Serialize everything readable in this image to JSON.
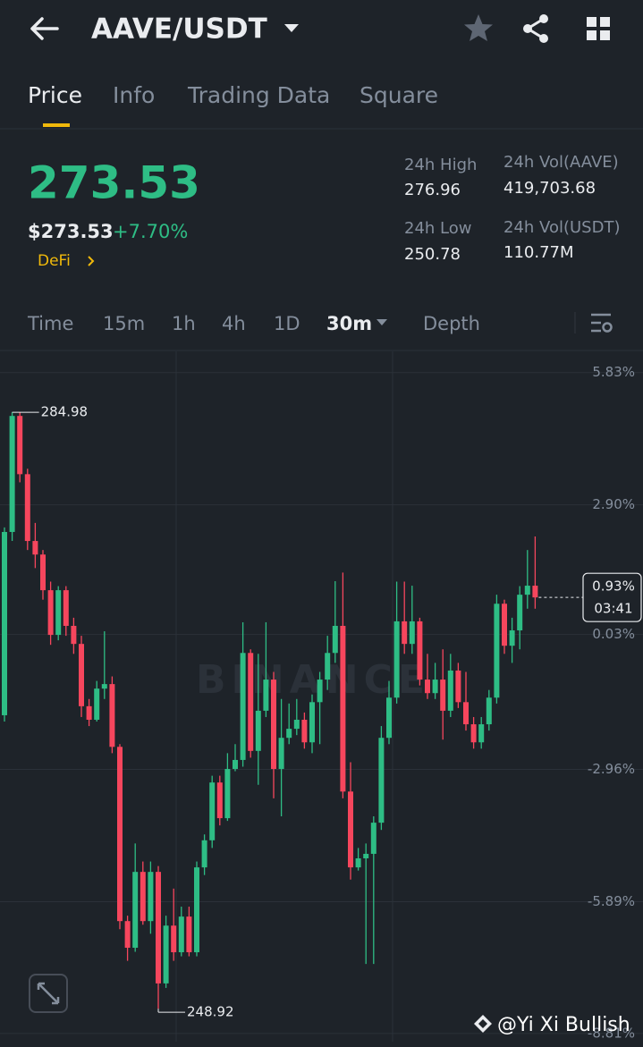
{
  "header": {
    "pair": "AAVE/USDT"
  },
  "tabs": [
    "Price",
    "Info",
    "Trading Data",
    "Square"
  ],
  "price": {
    "last": "273.53",
    "usd": "$273.53",
    "change": "+7.70%",
    "tag": "DeFi"
  },
  "stats": [
    {
      "label": "24h High",
      "value": "276.96"
    },
    {
      "label": "24h Vol(AAVE)",
      "value": "419,703.68"
    },
    {
      "label": "24h Low",
      "value": "250.78"
    },
    {
      "label": "24h Vol(USDT)",
      "value": "110.77M"
    }
  ],
  "intervals": [
    "Time",
    "15m",
    "1h",
    "4h",
    "1D",
    "30m",
    "Depth"
  ],
  "chart": {
    "type": "candlestick",
    "ylim": [
      -8.99,
      6.3
    ],
    "yticks": [
      {
        "value": 5.83,
        "label": "5.83%"
      },
      {
        "value": 2.9,
        "label": "2.90%"
      },
      {
        "value": 0.03,
        "label": "0.03%"
      },
      {
        "value": -2.96,
        "label": "-2.96%"
      },
      {
        "value": -5.89,
        "label": "-5.89%"
      },
      {
        "value": -8.81,
        "label": "-8.81%"
      }
    ],
    "up_color": "#2ebd85",
    "down_color": "#f6465d",
    "high_label": "284.98",
    "low_label": "248.92",
    "current": {
      "label": "0.93%",
      "countdown": "03:41"
    },
    "watermark": "BINANCE",
    "candles": [
      [
        -1.76,
        2.3,
        2.4,
        -1.9
      ],
      [
        2.3,
        4.87,
        4.95,
        2.1
      ],
      [
        4.87,
        3.58,
        4.95,
        3.4
      ],
      [
        3.58,
        2.1,
        3.7,
        1.9
      ],
      [
        2.1,
        1.8,
        2.5,
        1.5
      ],
      [
        1.8,
        1.01,
        1.9,
        0.8
      ],
      [
        1.01,
        0.02,
        1.2,
        -0.2
      ],
      [
        0.02,
        1.01,
        1.1,
        -0.1
      ],
      [
        1.01,
        0.22,
        1.1,
        0.0
      ],
      [
        0.22,
        -0.18,
        0.4,
        -0.4
      ],
      [
        -0.18,
        -1.56,
        0.0,
        -1.8
      ],
      [
        -1.56,
        -1.86,
        -1.4,
        -2.0
      ],
      [
        -1.86,
        -1.17,
        -1.0,
        -1.9
      ],
      [
        -1.17,
        -1.07,
        0.1,
        -1.4
      ],
      [
        -1.07,
        -2.46,
        -0.9,
        -2.6
      ],
      [
        -2.46,
        -6.32,
        -2.4,
        -6.5
      ],
      [
        -6.32,
        -6.91,
        -6.2,
        -7.2
      ],
      [
        -6.91,
        -5.23,
        -4.6,
        -7.0
      ],
      [
        -5.23,
        -6.32,
        -5.0,
        -6.4
      ],
      [
        -6.32,
        -5.23,
        -5.0,
        -6.6
      ],
      [
        -5.23,
        -7.7,
        -5.1,
        -8.26
      ],
      [
        -7.7,
        -6.42,
        -6.2,
        -7.8
      ],
      [
        -6.42,
        -7.01,
        -5.6,
        -7.2
      ],
      [
        -7.01,
        -6.22,
        -6.0,
        -7.1
      ],
      [
        -6.22,
        -7.01,
        -6.0,
        -7.1
      ],
      [
        -7.01,
        -5.13,
        -5.0,
        -7.1
      ],
      [
        -5.13,
        -4.53,
        -4.4,
        -5.3
      ],
      [
        -4.53,
        -3.25,
        -3.1,
        -4.7
      ],
      [
        -3.25,
        -4.04,
        -3.1,
        -4.2
      ],
      [
        -4.04,
        -2.95,
        -2.6,
        -4.1
      ],
      [
        -2.95,
        -2.75,
        -2.4,
        -3.0
      ],
      [
        -2.75,
        -0.38,
        0.3,
        -2.9
      ],
      [
        -0.38,
        -2.55,
        -0.3,
        -2.7
      ],
      [
        -2.55,
        -1.66,
        -0.4,
        -3.3
      ],
      [
        -1.66,
        -0.97,
        0.3,
        -1.8
      ],
      [
        -0.97,
        -2.95,
        -0.8,
        -3.6
      ],
      [
        -2.95,
        -2.26,
        -1.4,
        -4.0
      ],
      [
        -2.26,
        -2.06,
        -1.5,
        -2.4
      ],
      [
        -2.06,
        -1.86,
        -1.4,
        -2.2
      ],
      [
        -1.86,
        -2.36,
        -1.7,
        -2.5
      ],
      [
        -2.36,
        -1.47,
        -1.3,
        -2.6
      ],
      [
        -1.47,
        -0.97,
        -0.8,
        -2.4
      ],
      [
        -0.97,
        -0.38,
        0.0,
        -1.2
      ],
      [
        -0.38,
        0.22,
        1.21,
        -0.6
      ],
      [
        0.22,
        -3.45,
        1.4,
        -3.6
      ],
      [
        -3.45,
        -5.13,
        -2.8,
        -5.4
      ],
      [
        -5.13,
        -4.93,
        -4.7,
        -5.2
      ],
      [
        -4.93,
        -4.83,
        -4.6,
        -7.27
      ],
      [
        -4.83,
        -4.14,
        -4.0,
        -7.27
      ],
      [
        -4.14,
        -2.26,
        -2.0,
        -4.3
      ],
      [
        -2.26,
        -1.37,
        -1.0,
        -2.4
      ],
      [
        -1.37,
        0.32,
        1.2,
        -1.5
      ],
      [
        0.32,
        -0.18,
        1.2,
        -0.4
      ],
      [
        -0.18,
        0.32,
        1.11,
        -0.4
      ],
      [
        0.32,
        -0.97,
        0.4,
        -1.1
      ],
      [
        -0.97,
        -1.27,
        -0.4,
        -1.4
      ],
      [
        -1.27,
        -0.97,
        -0.6,
        -1.4
      ],
      [
        -0.97,
        -1.66,
        -0.3,
        -2.3
      ],
      [
        -1.66,
        -0.77,
        -0.4,
        -1.8
      ],
      [
        -0.77,
        -1.47,
        -0.6,
        -1.6
      ],
      [
        -1.47,
        -1.96,
        -0.8,
        -2.1
      ],
      [
        -1.96,
        -2.36,
        -1.8,
        -2.5
      ],
      [
        -2.36,
        -1.96,
        -1.8,
        -2.5
      ],
      [
        -1.96,
        -1.37,
        -1.2,
        -2.1
      ],
      [
        -1.37,
        0.71,
        0.91,
        -1.5
      ],
      [
        0.71,
        -0.22,
        0.8,
        -0.4
      ],
      [
        -0.22,
        0.12,
        0.4,
        -0.6
      ],
      [
        0.12,
        0.91,
        1.1,
        -0.3
      ],
      [
        0.91,
        1.11,
        1.9,
        0.6
      ],
      [
        1.11,
        0.85,
        2.2,
        0.6
      ]
    ]
  },
  "credit": "@Yi Xi Bullish"
}
